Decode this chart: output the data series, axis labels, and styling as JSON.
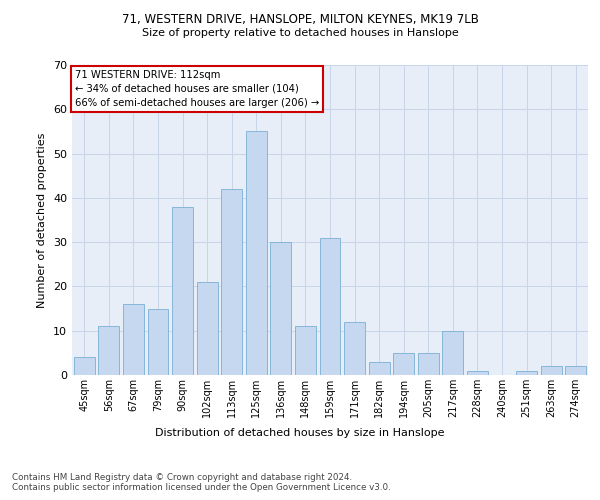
{
  "title1": "71, WESTERN DRIVE, HANSLOPE, MILTON KEYNES, MK19 7LB",
  "title2": "Size of property relative to detached houses in Hanslope",
  "xlabel": "Distribution of detached houses by size in Hanslope",
  "ylabel": "Number of detached properties",
  "categories": [
    "45sqm",
    "56sqm",
    "67sqm",
    "79sqm",
    "90sqm",
    "102sqm",
    "113sqm",
    "125sqm",
    "136sqm",
    "148sqm",
    "159sqm",
    "171sqm",
    "182sqm",
    "194sqm",
    "205sqm",
    "217sqm",
    "228sqm",
    "240sqm",
    "251sqm",
    "263sqm",
    "274sqm"
  ],
  "values": [
    4,
    11,
    16,
    15,
    38,
    21,
    42,
    55,
    30,
    11,
    31,
    12,
    3,
    5,
    5,
    10,
    1,
    0,
    1,
    2,
    2
  ],
  "bar_color": "#c5d8f0",
  "bar_edge_color": "#7aafd4",
  "grid_color": "#c8d4e8",
  "bg_color": "#e8eef8",
  "annotation_text": "71 WESTERN DRIVE: 112sqm\n← 34% of detached houses are smaller (104)\n66% of semi-detached houses are larger (206) →",
  "annotation_box_color": "#ffffff",
  "annotation_box_edge": "#cc0000",
  "footer1": "Contains HM Land Registry data © Crown copyright and database right 2024.",
  "footer2": "Contains public sector information licensed under the Open Government Licence v3.0.",
  "ylim": [
    0,
    70
  ],
  "yticks": [
    0,
    10,
    20,
    30,
    40,
    50,
    60,
    70
  ]
}
